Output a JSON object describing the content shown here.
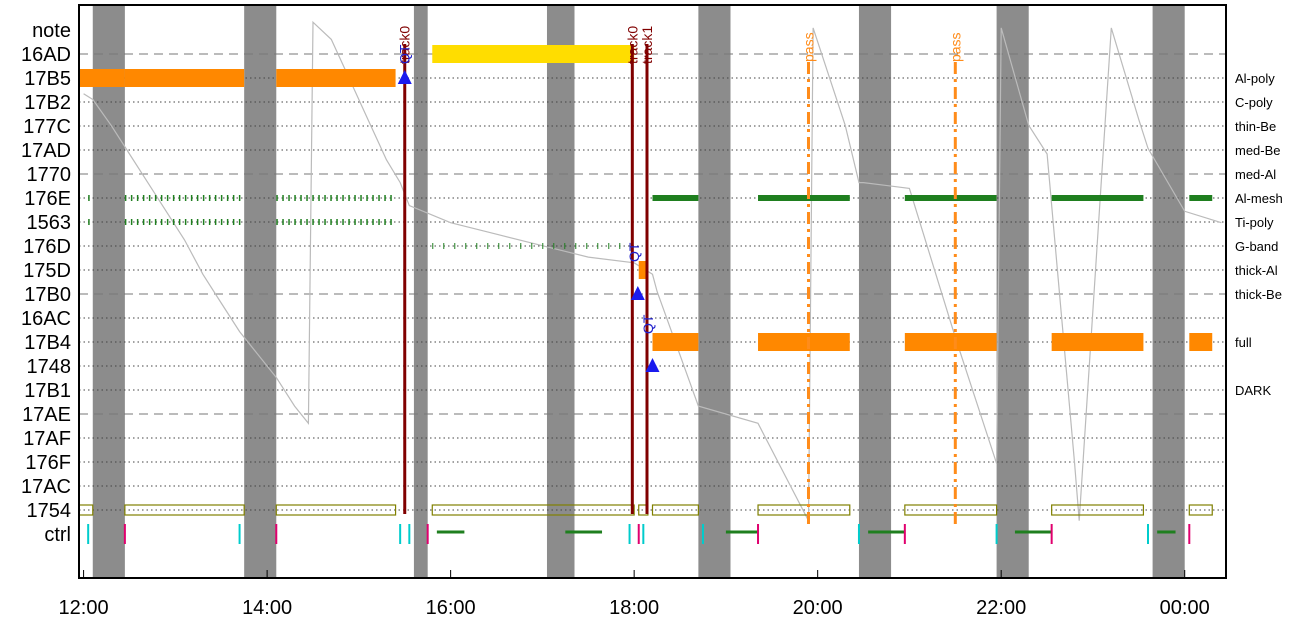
{
  "chart_data": {
    "type": "timeline",
    "x_tick_labels": [
      "12:00",
      "14:00",
      "16:00",
      "18:00",
      "20:00",
      "22:00",
      "00:00"
    ],
    "x_range_hours": [
      11.95,
      24.45
    ],
    "y_rows": [
      "note",
      "16AD",
      "17B5",
      "17B2",
      "177C",
      "17AD",
      "1770",
      "176E",
      "1563",
      "176D",
      "175D",
      "17B0",
      "16AC",
      "17B4",
      "1748",
      "17B1",
      "17AE",
      "17AF",
      "176F",
      "17AC",
      "1754",
      "ctrl"
    ],
    "dashed_rows": [
      "16AD",
      "1770",
      "17B0",
      "17AE"
    ],
    "right_labels": [
      {
        "row": "17B5",
        "text": "Al-poly"
      },
      {
        "row": "17B2",
        "text": "C-poly"
      },
      {
        "row": "177C",
        "text": "thin-Be"
      },
      {
        "row": "17AD",
        "text": "med-Be"
      },
      {
        "row": "1770",
        "text": "med-Al"
      },
      {
        "row": "176E",
        "text": "Al-mesh"
      },
      {
        "row": "1563",
        "text": "Ti-poly"
      },
      {
        "row": "176D",
        "text": "G-band"
      },
      {
        "row": "175D",
        "text": "thick-Al"
      },
      {
        "row": "17B0",
        "text": "thick-Be"
      },
      {
        "row": "17B4",
        "text": "full"
      },
      {
        "row": "17B1",
        "text": "DARK"
      }
    ],
    "gray_bands_hours": [
      [
        12.1,
        12.45
      ],
      [
        13.75,
        14.1
      ],
      [
        15.6,
        15.75
      ],
      [
        17.05,
        17.35
      ],
      [
        18.7,
        19.05
      ],
      [
        20.45,
        20.8
      ],
      [
        21.95,
        22.3
      ],
      [
        23.65,
        24.0
      ]
    ],
    "bars": [
      {
        "row": "16AD",
        "start": 15.8,
        "end": 18.0,
        "color": "#ffdd00"
      },
      {
        "row": "17B5",
        "start": 11.95,
        "end": 12.45,
        "color": "#ff8800"
      },
      {
        "row": "17B5",
        "start": 12.45,
        "end": 13.75,
        "color": "#ff8800"
      },
      {
        "row": "17B5",
        "start": 14.1,
        "end": 15.4,
        "color": "#ff8800"
      },
      {
        "row": "175D",
        "start": 18.05,
        "end": 18.15,
        "color": "#ff8800"
      },
      {
        "row": "17B4",
        "start": 18.2,
        "end": 18.7,
        "color": "#ff8800"
      },
      {
        "row": "17B4",
        "start": 19.35,
        "end": 20.35,
        "color": "#ff8800"
      },
      {
        "row": "17B4",
        "start": 20.95,
        "end": 21.95,
        "color": "#ff8800"
      },
      {
        "row": "17B4",
        "start": 22.55,
        "end": 23.55,
        "color": "#ff8800"
      },
      {
        "row": "17B4",
        "start": 24.05,
        "end": 24.3,
        "color": "#ff8800"
      },
      {
        "row": "176E",
        "start": 18.2,
        "end": 18.7,
        "color": "#1f7f1f"
      },
      {
        "row": "176E",
        "start": 19.35,
        "end": 20.35,
        "color": "#1f7f1f"
      },
      {
        "row": "176E",
        "start": 20.95,
        "end": 21.95,
        "color": "#1f7f1f"
      },
      {
        "row": "176E",
        "start": 22.55,
        "end": 23.55,
        "color": "#1f7f1f"
      },
      {
        "row": "176E",
        "start": 24.05,
        "end": 24.3,
        "color": "#1f7f1f"
      }
    ],
    "tick_rows": [
      {
        "row": "176E",
        "segments": [
          [
            12.05,
            12.1
          ],
          [
            12.45,
            13.75
          ],
          [
            14.1,
            15.4
          ]
        ]
      },
      {
        "row": "1563",
        "segments": [
          [
            12.05,
            12.1
          ],
          [
            12.45,
            13.75
          ],
          [
            14.1,
            15.4
          ]
        ]
      },
      {
        "row": "176D",
        "segments": [
          [
            15.8,
            17.9
          ]
        ]
      }
    ],
    "hollow_bars_1754": [
      [
        11.95,
        12.1
      ],
      [
        12.45,
        13.75
      ],
      [
        14.1,
        15.4
      ],
      [
        15.8,
        18.0
      ],
      [
        18.05,
        18.15
      ],
      [
        18.2,
        18.7
      ],
      [
        19.35,
        20.35
      ],
      [
        20.95,
        21.95
      ],
      [
        22.55,
        23.55
      ],
      [
        24.05,
        24.3
      ]
    ],
    "ctrl_green_segments": [
      [
        15.85,
        16.15
      ],
      [
        17.25,
        17.65
      ],
      [
        19.0,
        19.35
      ],
      [
        20.55,
        20.95
      ],
      [
        22.15,
        22.55
      ],
      [
        23.7,
        23.9
      ]
    ],
    "ctrl_cyan_marks": [
      12.05,
      13.7,
      15.45,
      15.55,
      17.95,
      18.1,
      18.75,
      20.45,
      21.95,
      23.6
    ],
    "ctrl_magenta_marks": [
      12.45,
      14.1,
      15.75,
      18.05,
      19.35,
      20.95,
      22.55,
      24.05
    ],
    "tracks": [
      {
        "x": 15.5,
        "label": "track0",
        "overlay_label": "QT",
        "color": "#800000"
      },
      {
        "x": 17.98,
        "label": "track0",
        "color": "#800000"
      },
      {
        "x": 18.14,
        "label": "track1",
        "color": "#800000"
      }
    ],
    "qt_labels": [
      {
        "x": 18.0,
        "row": "176D",
        "text": "QT"
      },
      {
        "x": 18.15,
        "row": "16AC",
        "text": "QT"
      }
    ],
    "triangles": [
      {
        "x": 15.5,
        "row": "17B5"
      },
      {
        "x": 18.04,
        "row": "17B0"
      },
      {
        "x": 18.2,
        "row": "1748"
      }
    ],
    "pass_lines": [
      {
        "x": 19.9,
        "label": "pass"
      },
      {
        "x": 21.5,
        "label": "pass"
      }
    ],
    "gray_trace": [
      [
        12.0,
        0.845
      ],
      [
        12.1,
        0.835
      ],
      [
        12.3,
        0.79
      ],
      [
        12.5,
        0.74
      ],
      [
        12.7,
        0.69
      ],
      [
        12.9,
        0.64
      ],
      [
        13.1,
        0.59
      ],
      [
        13.3,
        0.53
      ],
      [
        13.5,
        0.48
      ],
      [
        13.7,
        0.43
      ],
      [
        13.9,
        0.39
      ],
      [
        14.1,
        0.35
      ],
      [
        14.3,
        0.3
      ],
      [
        14.45,
        0.27
      ],
      [
        14.5,
        0.97
      ],
      [
        14.7,
        0.94
      ],
      [
        14.9,
        0.87
      ],
      [
        15.1,
        0.8
      ],
      [
        15.3,
        0.73
      ],
      [
        15.45,
        0.69
      ],
      [
        15.55,
        0.65
      ],
      [
        16.0,
        0.62
      ],
      [
        16.5,
        0.6
      ],
      [
        17.0,
        0.58
      ],
      [
        17.5,
        0.56
      ],
      [
        18.0,
        0.55
      ],
      [
        18.2,
        0.53
      ],
      [
        18.25,
        0.5
      ],
      [
        18.7,
        0.3
      ],
      [
        19.35,
        0.27
      ],
      [
        19.9,
        0.1
      ],
      [
        19.95,
        0.96
      ],
      [
        20.3,
        0.79
      ],
      [
        20.45,
        0.69
      ],
      [
        20.5,
        0.69
      ],
      [
        21.0,
        0.68
      ],
      [
        21.5,
        0.42
      ],
      [
        21.95,
        0.2
      ],
      [
        22.0,
        0.96
      ],
      [
        22.3,
        0.79
      ],
      [
        22.5,
        0.74
      ],
      [
        22.8,
        0.2
      ],
      [
        22.85,
        0.1
      ],
      [
        23.2,
        0.96
      ],
      [
        23.5,
        0.8
      ],
      [
        23.6,
        0.75
      ],
      [
        24.0,
        0.64
      ],
      [
        24.4,
        0.62
      ]
    ]
  }
}
